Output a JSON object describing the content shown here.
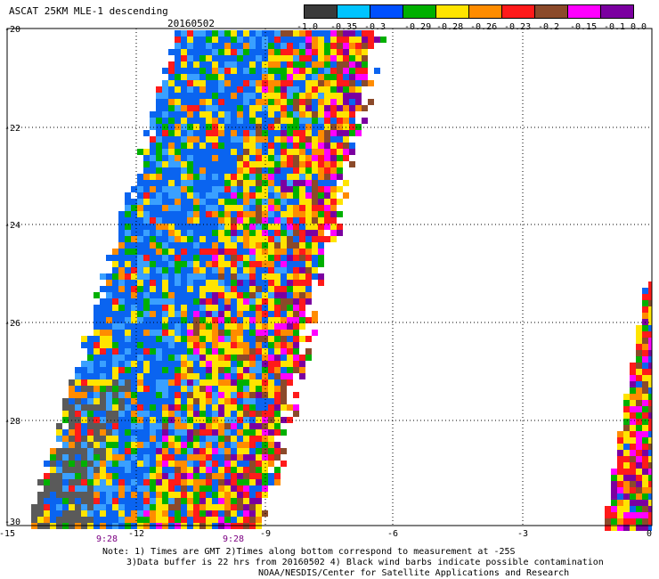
{
  "header": {
    "title": "ASCAT 25KM MLE-1 descending",
    "date": "20160502"
  },
  "legend": {
    "colors": [
      "#3a3a3a",
      "#00c4ff",
      "#0050ff",
      "#00b000",
      "#ffe400",
      "#ff8c00",
      "#ff1a1a",
      "#8b4a2a",
      "#ff00ff",
      "#7b00a0"
    ],
    "labels": [
      "-1.0",
      "-0.35",
      "-0.3",
      "-0.29",
      "-0.28",
      "-0.26",
      "-0.23",
      "-0.2",
      "-0.15",
      "-0.1",
      "0.0"
    ]
  },
  "axes": {
    "y_ticks": [
      "-20",
      "-22",
      "-24",
      "-26",
      "-28",
      "-30"
    ],
    "x_ticks": [
      "-15",
      "-12",
      "-9",
      "-6",
      "-3",
      "0"
    ]
  },
  "time_labels": [
    "9:28",
    "9:28"
  ],
  "notes": [
    "Note: 1) Times are GMT 2)Times along bottom correspond to measurement at -25S",
    "3)Data buffer is 22 hrs from 20160502 4) Black wind barbs indicate possible contamination",
    "NOAA/NESDIS/Center for Satellite Applications and Research"
  ],
  "palette": {
    "gray": "#5a5a5a",
    "lightblue": "#3aa0ff",
    "blue": "#0a64f0",
    "green": "#00b000",
    "yellow": "#ffe400",
    "orange": "#ff8c00",
    "red": "#ff1a1a",
    "brown": "#8b4a2a",
    "magenta": "#ff00ff",
    "purple": "#7b00a0"
  }
}
